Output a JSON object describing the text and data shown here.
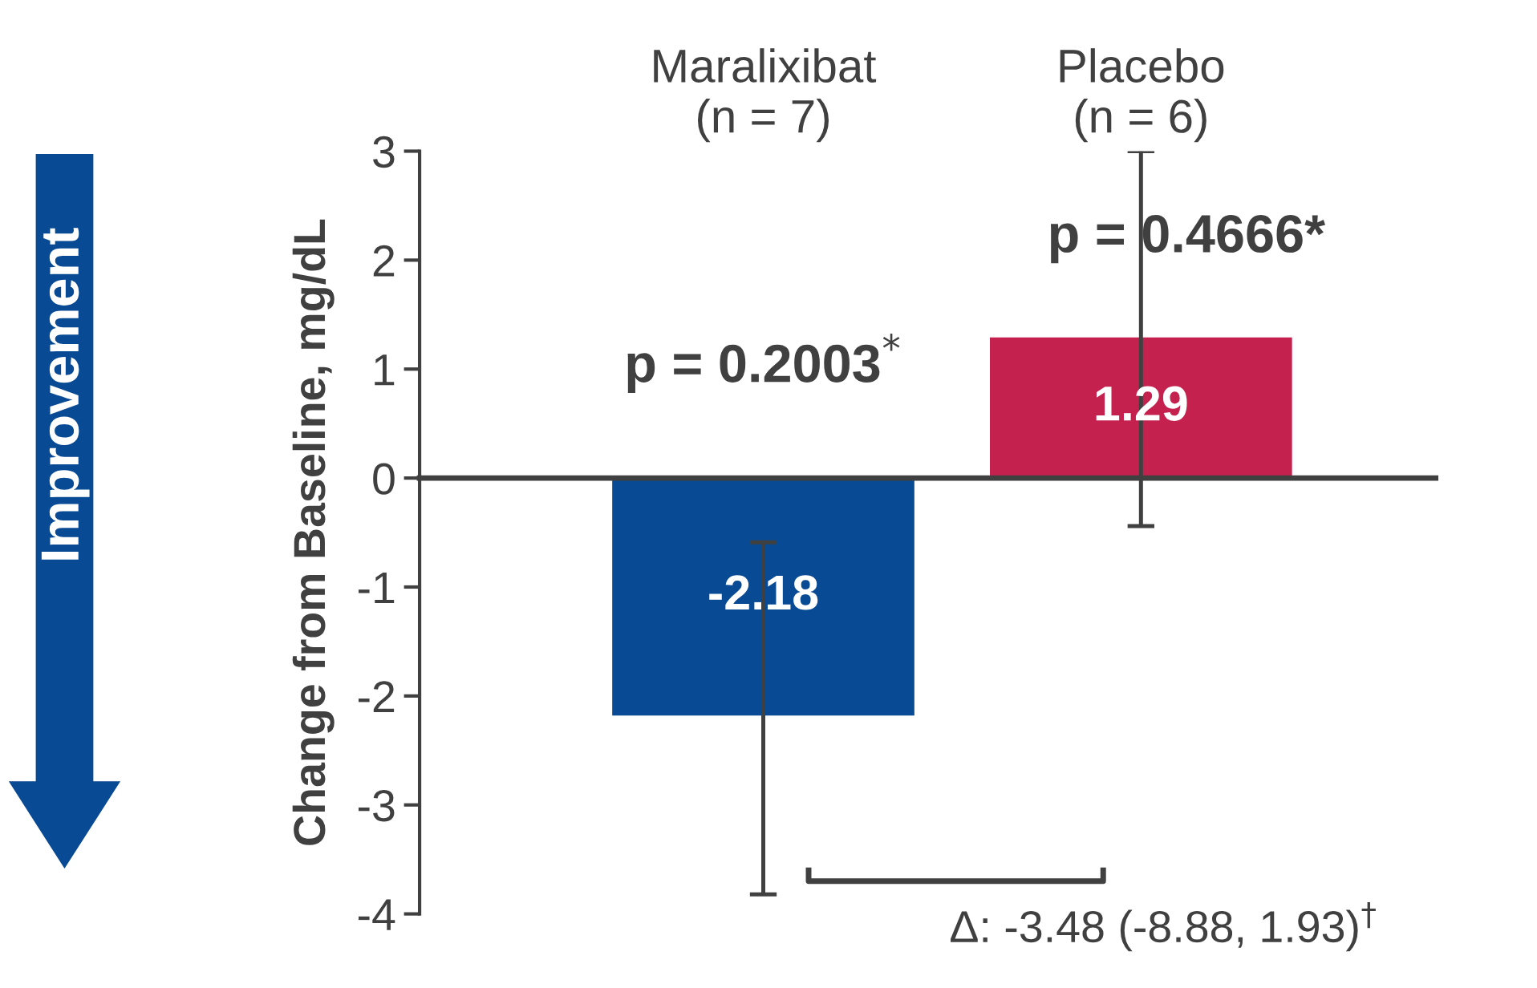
{
  "chart_data": {
    "type": "bar",
    "categories": [
      "Maralixibat\n(n = 7)",
      "Placebo\n(n = 6)"
    ],
    "values": [
      -2.18,
      1.29
    ],
    "colors": [
      "#084a94",
      "#c4214f"
    ],
    "errors": [
      [
        -3.82,
        -0.59
      ],
      [
        -0.44,
        3.0
      ]
    ],
    "data_labels": true,
    "ylabel": "Change from Baseline, mg/dL",
    "ylim": [
      -4,
      3
    ],
    "yticks": [
      -4,
      -3,
      -2,
      -1,
      0,
      1,
      2,
      3
    ],
    "legend": false,
    "annotations": [
      "p = 0.2003$^{*}$",
      "p = 0.4666*",
      "Δ: -3.48 (-8.88, 1.93)$^{†}$",
      "Improvement"
    ]
  }
}
